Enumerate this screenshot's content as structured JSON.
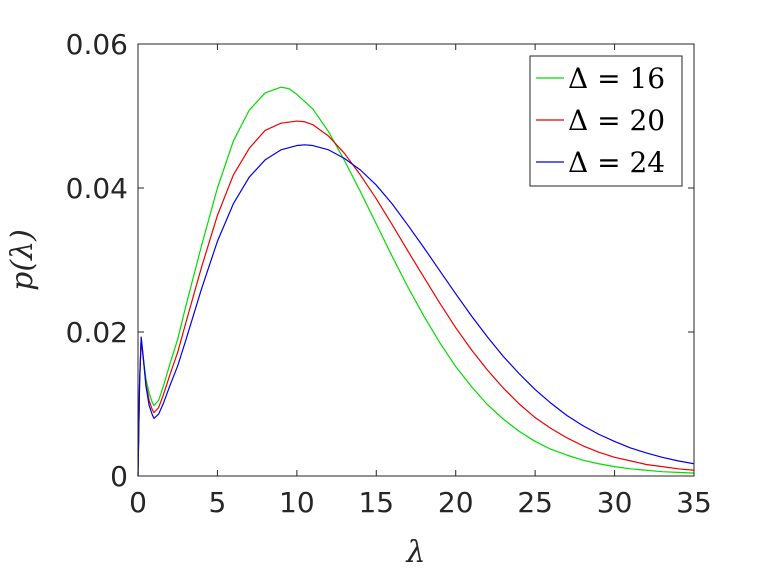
{
  "chart_data": {
    "type": "line",
    "xlabel": "λ",
    "ylabel": "p(λ)",
    "xlim": [
      0,
      35
    ],
    "ylim": [
      0,
      0.06
    ],
    "x_ticks": [
      "0",
      "5",
      "10",
      "15",
      "20",
      "25",
      "30",
      "35"
    ],
    "y_ticks": [
      "0",
      "0.02",
      "0.04",
      "0.06"
    ],
    "legend_position": "top-right",
    "grid": false,
    "series": [
      {
        "name": "Δ = 16",
        "color": "#00dd00",
        "x": [
          0,
          0.1,
          0.2,
          0.3,
          0.5,
          0.7,
          0.9,
          1.0,
          1.3,
          1.6,
          2,
          2.5,
          3,
          4,
          5,
          6,
          7,
          8,
          9,
          9.5,
          10,
          11,
          12,
          13,
          14,
          15,
          16,
          17,
          18,
          19,
          20,
          21,
          22,
          23,
          24,
          25,
          26,
          27,
          28,
          29,
          30,
          31,
          32,
          33,
          34,
          35
        ],
        "values": [
          0,
          0.013,
          0.019,
          0.017,
          0.0135,
          0.0115,
          0.0102,
          0.0098,
          0.0105,
          0.0125,
          0.0155,
          0.019,
          0.0235,
          0.032,
          0.04,
          0.0465,
          0.0508,
          0.0532,
          0.054,
          0.0538,
          0.053,
          0.051,
          0.0478,
          0.0438,
          0.0395,
          0.035,
          0.0305,
          0.0262,
          0.0222,
          0.0185,
          0.0152,
          0.0124,
          0.0099,
          0.0079,
          0.0062,
          0.0048,
          0.0037,
          0.0029,
          0.0022,
          0.0017,
          0.0013,
          0.001,
          0.0008,
          0.0006,
          0.0005,
          0.0004
        ]
      },
      {
        "name": "Δ = 20",
        "color": "#ee0000",
        "x": [
          0,
          0.1,
          0.2,
          0.3,
          0.5,
          0.7,
          0.9,
          1.0,
          1.3,
          1.6,
          2,
          2.5,
          3,
          4,
          5,
          6,
          7,
          8,
          9,
          10,
          10.5,
          11,
          12,
          13,
          14,
          15,
          16,
          17,
          18,
          19,
          20,
          21,
          22,
          23,
          24,
          25,
          26,
          27,
          28,
          29,
          30,
          31,
          32,
          33,
          34,
          35
        ],
        "values": [
          0,
          0.013,
          0.019,
          0.017,
          0.0128,
          0.0105,
          0.0092,
          0.0088,
          0.0095,
          0.0113,
          0.014,
          0.0172,
          0.0212,
          0.029,
          0.0362,
          0.0418,
          0.0455,
          0.048,
          0.049,
          0.0493,
          0.0492,
          0.0488,
          0.0472,
          0.0448,
          0.0418,
          0.0385,
          0.0349,
          0.0312,
          0.0276,
          0.024,
          0.0206,
          0.0175,
          0.0147,
          0.0122,
          0.01,
          0.0081,
          0.0066,
          0.0053,
          0.0042,
          0.0033,
          0.0026,
          0.0021,
          0.0016,
          0.0013,
          0.001,
          0.0008
        ]
      },
      {
        "name": "Δ = 24",
        "color": "#0000ee",
        "x": [
          0,
          0.1,
          0.2,
          0.3,
          0.5,
          0.7,
          0.9,
          1.0,
          1.3,
          1.6,
          2,
          2.5,
          3,
          4,
          5,
          6,
          7,
          8,
          9,
          10,
          10.5,
          11,
          12,
          13,
          14,
          15,
          16,
          17,
          18,
          19,
          20,
          21,
          22,
          23,
          24,
          25,
          26,
          27,
          28,
          29,
          30,
          31,
          32,
          33,
          34,
          35
        ],
        "values": [
          0,
          0.013,
          0.0193,
          0.0172,
          0.0125,
          0.0098,
          0.0085,
          0.008,
          0.0086,
          0.0101,
          0.0125,
          0.0153,
          0.0188,
          0.026,
          0.0326,
          0.0378,
          0.0415,
          0.0439,
          0.0453,
          0.0459,
          0.046,
          0.0459,
          0.0453,
          0.0441,
          0.0425,
          0.0404,
          0.0378,
          0.0348,
          0.0317,
          0.0285,
          0.0253,
          0.0222,
          0.0193,
          0.0166,
          0.0142,
          0.012,
          0.0101,
          0.0084,
          0.007,
          0.0058,
          0.0048,
          0.0039,
          0.0032,
          0.0026,
          0.0021,
          0.0017
        ]
      }
    ]
  }
}
